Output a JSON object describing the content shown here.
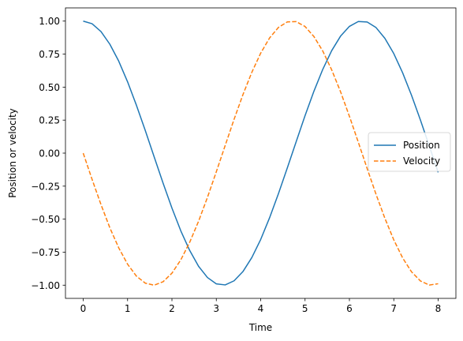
{
  "chart_data": {
    "type": "line",
    "xlabel": "Time",
    "ylabel": "Position or velocity",
    "xlim": [
      -0.4,
      8.4
    ],
    "ylim": [
      -1.1,
      1.1
    ],
    "xticks": [
      0,
      1,
      2,
      3,
      4,
      5,
      6,
      7,
      8
    ],
    "xtick_labels": [
      "0",
      "1",
      "2",
      "3",
      "4",
      "5",
      "6",
      "7",
      "8"
    ],
    "yticks": [
      1.0,
      0.75,
      0.5,
      0.25,
      0.0,
      -0.25,
      -0.5,
      -0.75,
      -1.0
    ],
    "ytick_labels": [
      "1.00",
      "0.75",
      "0.50",
      "0.25",
      "0.00",
      "−0.25",
      "−0.50",
      "−0.75",
      "−1.00"
    ],
    "grid": false,
    "legend_position": "center-right",
    "series": [
      {
        "name": "Position",
        "color": "#1f77b4",
        "dash": "solid",
        "x": [
          0.0,
          0.2,
          0.4,
          0.6,
          0.8,
          1.0,
          1.2,
          1.4,
          1.6,
          1.8,
          2.0,
          2.2,
          2.4,
          2.6,
          2.8,
          3.0,
          3.2,
          3.4,
          3.6,
          3.8,
          4.0,
          4.2,
          4.4,
          4.6,
          4.8,
          5.0,
          5.2,
          5.4,
          5.6,
          5.8,
          6.0,
          6.2,
          6.4,
          6.6,
          6.8,
          7.0,
          7.2,
          7.4,
          7.6,
          7.8,
          8.0
        ],
        "y": [
          1.0,
          0.98,
          0.921,
          0.825,
          0.697,
          0.54,
          0.362,
          0.17,
          -0.029,
          -0.227,
          -0.416,
          -0.589,
          -0.737,
          -0.857,
          -0.942,
          -0.99,
          -0.998,
          -0.967,
          -0.897,
          -0.791,
          -0.654,
          -0.49,
          -0.307,
          -0.112,
          0.087,
          0.284,
          0.469,
          0.635,
          0.776,
          0.886,
          0.96,
          0.997,
          0.993,
          0.951,
          0.869,
          0.754,
          0.608,
          0.438,
          0.251,
          0.054,
          -0.146
        ]
      },
      {
        "name": "Velocity",
        "color": "#ff7f0e",
        "dash": "dashed",
        "x": [
          0.0,
          0.2,
          0.4,
          0.6,
          0.8,
          1.0,
          1.2,
          1.4,
          1.6,
          1.8,
          2.0,
          2.2,
          2.4,
          2.6,
          2.8,
          3.0,
          3.2,
          3.4,
          3.6,
          3.8,
          4.0,
          4.2,
          4.4,
          4.6,
          4.8,
          5.0,
          5.2,
          5.4,
          5.6,
          5.8,
          6.0,
          6.2,
          6.4,
          6.6,
          6.8,
          7.0,
          7.2,
          7.4,
          7.6,
          7.8,
          8.0
        ],
        "y": [
          0.0,
          -0.199,
          -0.389,
          -0.565,
          -0.717,
          -0.841,
          -0.932,
          -0.985,
          -1.0,
          -0.974,
          -0.909,
          -0.808,
          -0.675,
          -0.516,
          -0.335,
          -0.141,
          0.058,
          0.256,
          0.443,
          0.612,
          0.757,
          0.872,
          0.952,
          0.994,
          0.996,
          0.959,
          0.883,
          0.773,
          0.631,
          0.465,
          0.279,
          0.083,
          -0.117,
          -0.312,
          -0.494,
          -0.657,
          -0.794,
          -0.899,
          -0.968,
          -0.999,
          -0.989
        ]
      }
    ]
  }
}
